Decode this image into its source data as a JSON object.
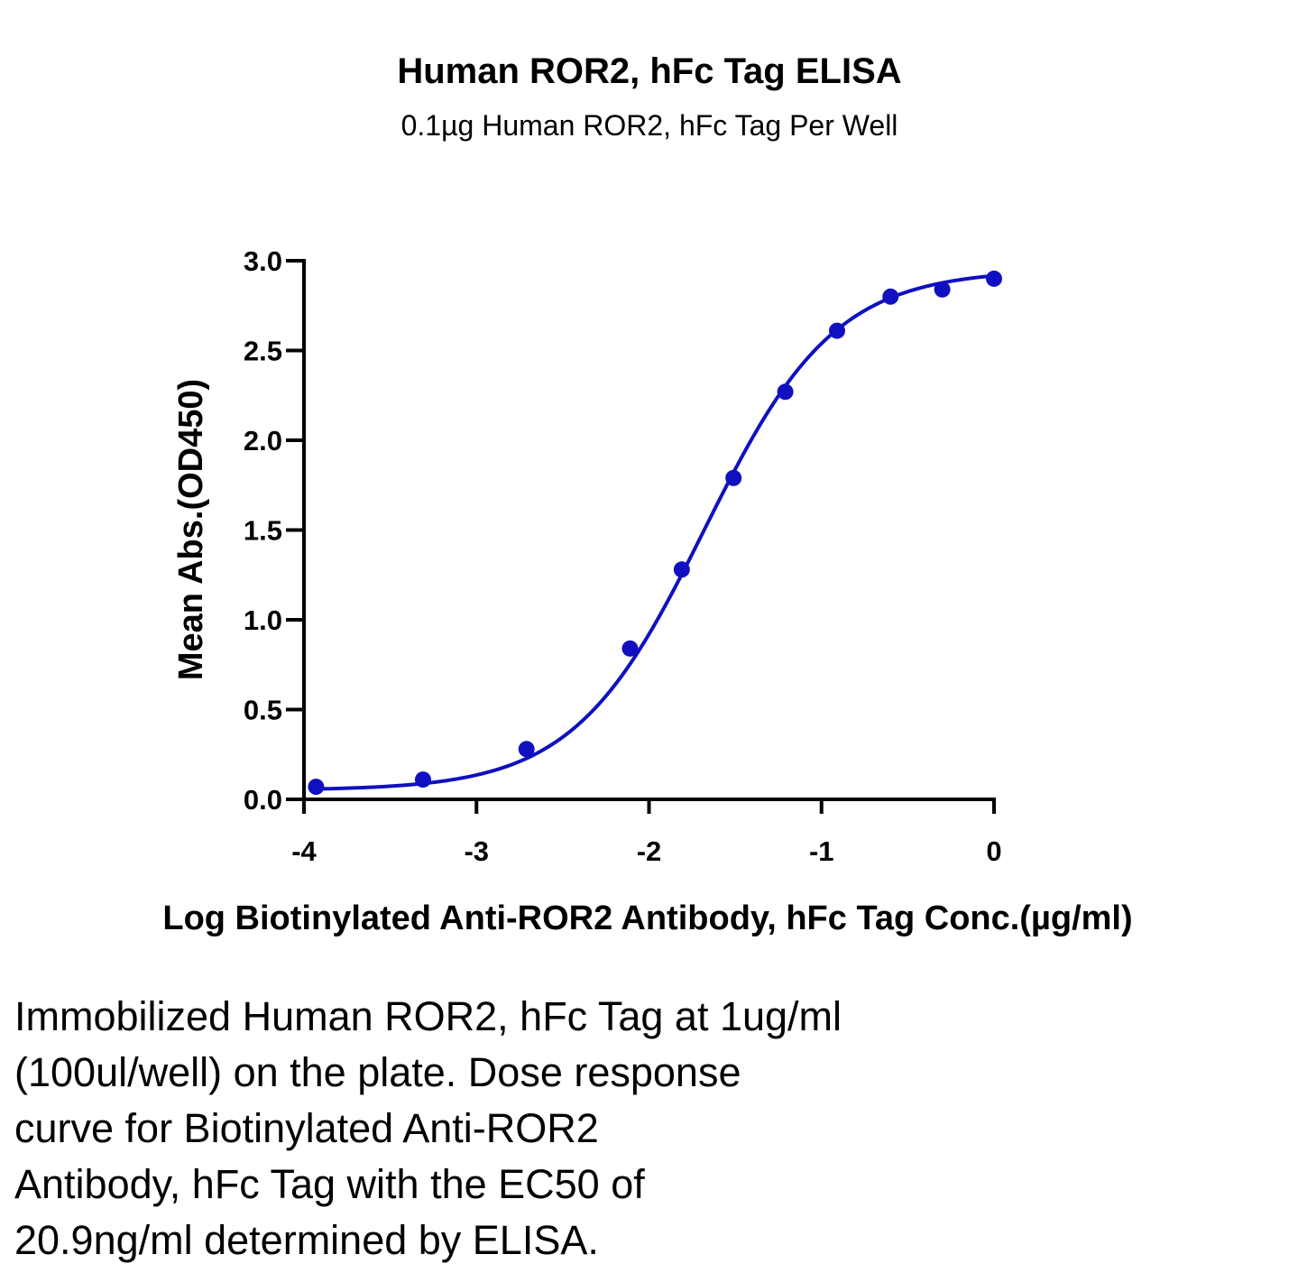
{
  "chart_data": {
    "type": "scatter",
    "title": "Human ROR2, hFc Tag ELISA",
    "subtitle": "0.1µg Human ROR2, hFc Tag Per Well",
    "xlabel": "Log Biotinylated Anti-ROR2 Antibody, hFc Tag Conc.(µg/ml)",
    "ylabel": "Mean Abs.(OD450)",
    "xlim": [
      -4,
      0
    ],
    "ylim": [
      0,
      3.0
    ],
    "x_ticks": [
      -4,
      -3,
      -2,
      -1,
      0
    ],
    "x_tick_labels": [
      "-4",
      "-3",
      "-2",
      "-1",
      "0"
    ],
    "y_ticks": [
      0,
      0.5,
      1.0,
      1.5,
      2.0,
      2.5,
      3.0
    ],
    "y_tick_labels": [
      "0.0",
      "0.5",
      "1.0",
      "1.5",
      "2.0",
      "2.5",
      "3.0"
    ],
    "grid": false,
    "legend": "none",
    "color": "#1010c0",
    "series": [
      {
        "x": [
          -3.93,
          -3.31,
          -2.71,
          -2.11,
          -1.81,
          -1.51,
          -1.21,
          -0.91,
          -0.6,
          -0.3,
          0.0
        ],
        "y": [
          0.07,
          0.11,
          0.28,
          0.84,
          1.28,
          1.79,
          2.27,
          2.61,
          2.8,
          2.84,
          2.9
        ]
      }
    ],
    "fit": {
      "model": "4PL",
      "bottom": 0.05,
      "top": 2.95,
      "log_ec50": -1.68,
      "hill": 1.15,
      "x_range": [
        -3.93,
        0.0
      ]
    }
  },
  "caption_lines": [
    "Immobilized Human ROR2, hFc Tag at 1ug/ml",
    "(100ul/well) on the plate. Dose response",
    "curve for Biotinylated Anti-ROR2",
    "Antibody, hFc Tag with the EC50 of",
    "20.9ng/ml determined by ELISA."
  ]
}
